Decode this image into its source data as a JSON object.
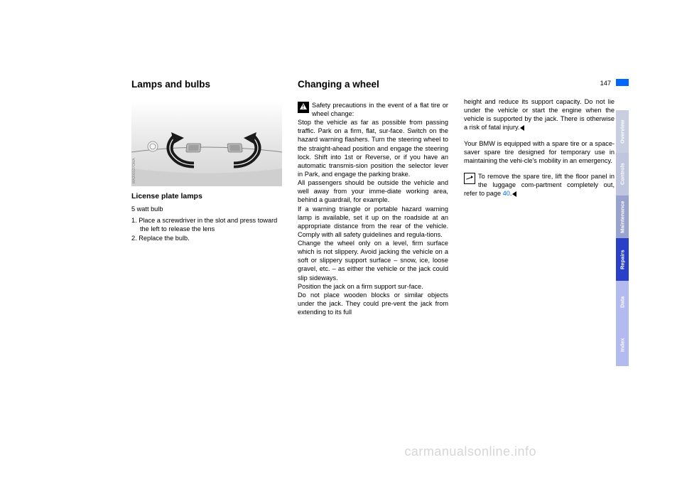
{
  "page_number": "147",
  "col1": {
    "heading": "Lamps and bulbs",
    "sub": "License plate lamps",
    "spec": "5 watt bulb",
    "steps": [
      "1. Place a screwdriver in the slot and press toward the left to release the lens",
      "2. Replace the bulb."
    ]
  },
  "col2": {
    "heading": "Changing a wheel",
    "warn1": "Safety precautions in the event of a flat tire or wheel change:",
    "p1": "Stop the vehicle as far as possible from passing traffic. Park on a firm, flat, sur-face. Switch on the hazard warning flashers. Turn the steering wheel to the straight-ahead position and engage the steering lock. Shift into 1st or Reverse, or if you have an automatic transmis-sion position the selector lever in Park, and engage the parking brake.",
    "p2": "All passengers should be outside the vehicle and well away from your imme-diate working area, behind a guardrail, for example.",
    "p3": "If a warning triangle or portable hazard warning lamp is available, set it up on the roadside at an appropriate distance from the rear of the vehicle. Comply with all safety guidelines and regula-tions.",
    "p4": "Change the wheel only on a level, firm surface which is not slippery. Avoid jacking the vehicle on a soft or slippery support surface – snow, ice, loose gravel, etc. – as either the vehicle or the jack could slip sideways.",
    "p5": "Position the jack on a firm support sur-face.",
    "p6": "Do not place wooden blocks or similar objects under the jack. They could pre-vent the jack from extending to its full"
  },
  "col3": {
    "p1a": "height and reduce its support capacity. Do not lie under the vehicle or start the engine when the vehicle is supported by the jack. There is otherwise a risk of fatal injury.",
    "p2": "Your BMW is equipped with a spare tire or a space-saver spare tire designed for temporary use in maintaining the vehi-cle's mobility in an emergency.",
    "note_a": "To remove the spare tire, lift the floor panel in the luggage com-partment completely out, refer to page ",
    "note_link": "40",
    "note_b": "."
  },
  "tabs": [
    {
      "label": "Overview",
      "color": "#c9cee0"
    },
    {
      "label": "Controls",
      "color": "#c0c6de"
    },
    {
      "label": "Maintenance",
      "color": "#98a3d0"
    },
    {
      "label": "Repairs",
      "color": "#2a3fc8"
    },
    {
      "label": "Data",
      "color": "#b2baf0"
    },
    {
      "label": "Index",
      "color": "#b2baf0"
    }
  ],
  "watermark": "carmanualsonline.info"
}
